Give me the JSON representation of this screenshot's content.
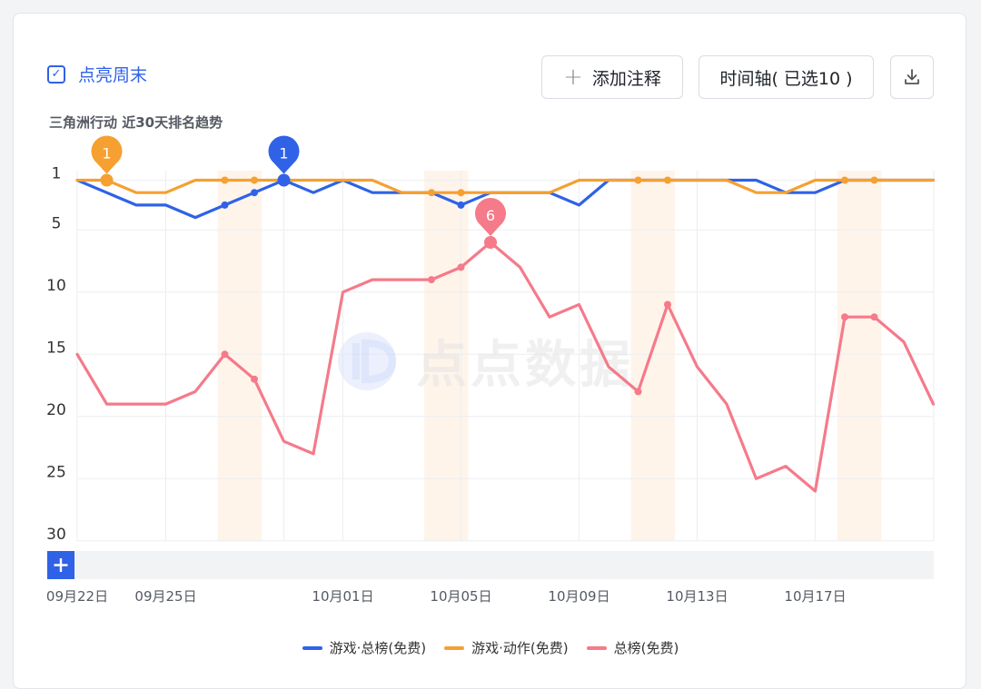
{
  "toolbar": {
    "weekend_label": "点亮周末",
    "annotate_label": "添加注释",
    "timeline_label": "时间轴( 已选10 )"
  },
  "subtitle": "三角洲行动 近30天排名趋势",
  "watermark": "点点数据",
  "colors": {
    "accent": "#2f62e6",
    "weekend_band": "#fff4ea"
  },
  "icons": {
    "checkbox": "check-icon",
    "annotate": "plus-icon",
    "download": "download-icon",
    "slider": "plus-icon"
  },
  "chart_data": {
    "type": "line",
    "y_reversed": true,
    "ylim": [
      1,
      30
    ],
    "y_ticks": [
      1,
      5,
      10,
      15,
      20,
      25,
      30
    ],
    "dates": [
      "09-22",
      "09-23",
      "09-24",
      "09-25",
      "09-26",
      "09-27",
      "09-28",
      "09-29",
      "09-30",
      "10-01",
      "10-02",
      "10-03",
      "10-04",
      "10-05",
      "10-06",
      "10-07",
      "10-08",
      "10-09",
      "10-10",
      "10-11",
      "10-12",
      "10-13",
      "10-14",
      "10-15",
      "10-16",
      "10-17",
      "10-18",
      "10-19",
      "10-20",
      "10-21"
    ],
    "x_tick_labels": [
      {
        "date": "09-22",
        "label": "09月22日"
      },
      {
        "date": "09-25",
        "label": "09月25日"
      },
      {
        "date": "10-01",
        "label": "10月01日"
      },
      {
        "date": "10-05",
        "label": "10月05日"
      },
      {
        "date": "10-09",
        "label": "10月09日"
      },
      {
        "date": "10-13",
        "label": "10月13日"
      },
      {
        "date": "10-17",
        "label": "10月17日"
      }
    ],
    "weekend_bands": [
      [
        "09-27",
        "09-28"
      ],
      [
        "10-04",
        "10-05"
      ],
      [
        "10-11",
        "10-12"
      ],
      [
        "10-18",
        "10-19"
      ]
    ],
    "series": [
      {
        "name": "游戏·总榜(免费)",
        "color": "#2f62e6",
        "values": [
          1,
          2,
          3,
          3,
          4,
          3,
          2,
          1,
          2,
          1,
          2,
          2,
          2,
          3,
          2,
          2,
          2,
          3,
          1,
          1,
          1,
          1,
          1,
          1,
          2,
          2,
          1,
          1,
          1,
          1
        ],
        "markers": [
          "09-27",
          "09-28",
          "09-29",
          "10-05"
        ],
        "pin": {
          "date": "09-29",
          "label": "1"
        }
      },
      {
        "name": "游戏·动作(免费)",
        "color": "#f5a031",
        "values": [
          1,
          1,
          2,
          2,
          1,
          1,
          1,
          1,
          1,
          1,
          1,
          2,
          2,
          2,
          2,
          2,
          2,
          1,
          1,
          1,
          1,
          1,
          1,
          2,
          2,
          1,
          1,
          1,
          1,
          1
        ],
        "markers": [
          "09-23",
          "09-27",
          "09-28",
          "10-04",
          "10-05",
          "10-11",
          "10-12",
          "10-18",
          "10-19"
        ],
        "pin": {
          "date": "09-23",
          "label": "1"
        }
      },
      {
        "name": "总榜(免费)",
        "color": "#f57a8a",
        "values": [
          15,
          19,
          19,
          19,
          18,
          15,
          17,
          22,
          23,
          10,
          9,
          9,
          9,
          8,
          6,
          8,
          12,
          11,
          16,
          18,
          11,
          16,
          19,
          25,
          24,
          26,
          12,
          12,
          14,
          19
        ],
        "markers": [
          "09-27",
          "09-28",
          "10-04",
          "10-05",
          "10-06",
          "10-11",
          "10-12",
          "10-18",
          "10-19"
        ],
        "pin": {
          "date": "10-06",
          "label": "6"
        }
      }
    ]
  }
}
